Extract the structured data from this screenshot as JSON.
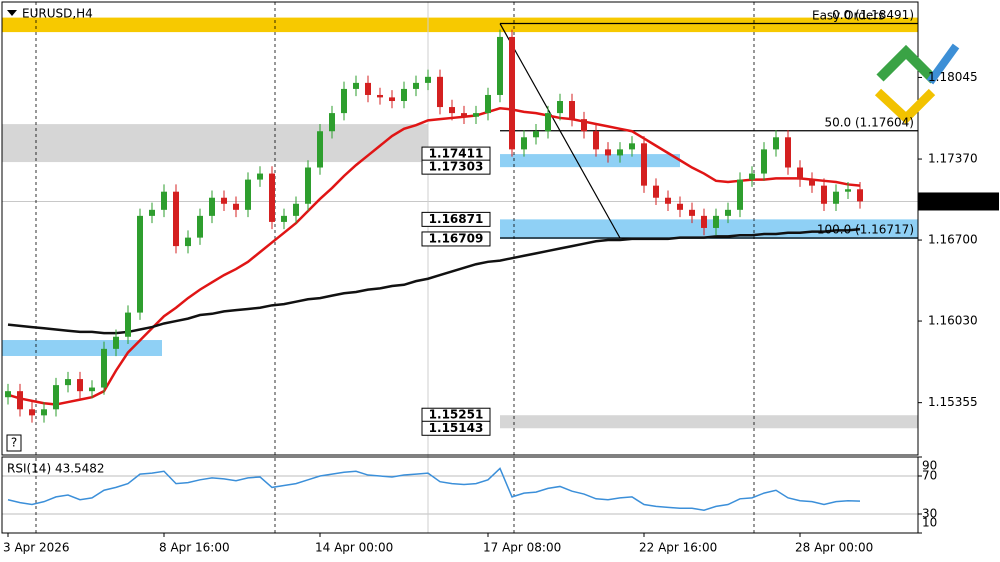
{
  "chart_data": {
    "type": "candlestick",
    "title": "EURUSD,H4",
    "categories": [
      "3 Apr 2026",
      null,
      null,
      null,
      null,
      null,
      null,
      null,
      null,
      null,
      null,
      null,
      null,
      "8 Apr 16:00",
      null,
      null,
      null,
      null,
      null,
      null,
      null,
      null,
      null,
      null,
      null,
      null,
      "14 Apr 00:00",
      null,
      null,
      null,
      null,
      null,
      null,
      null,
      null,
      null,
      null,
      null,
      null,
      null,
      "17 Apr 08:00",
      null,
      null,
      null,
      null,
      null,
      null,
      null,
      null,
      null,
      null,
      null,
      null,
      "22 Apr 16:00",
      null,
      null,
      null,
      null,
      null,
      null,
      null,
      null,
      null,
      null,
      null,
      null,
      "28 Apr 00:00",
      null,
      null,
      null,
      null,
      null
    ],
    "open": [
      1.154,
      1.1545,
      1.153,
      1.1525,
      1.153,
      1.155,
      1.1555,
      1.1545,
      1.1548,
      1.158,
      1.159,
      1.161,
      1.169,
      1.1695,
      1.171,
      1.1665,
      1.1672,
      1.169,
      1.1705,
      1.17,
      1.1695,
      1.172,
      1.1725,
      1.1685,
      1.169,
      1.17,
      1.173,
      1.176,
      1.1775,
      1.1795,
      1.18,
      1.179,
      1.1788,
      1.1785,
      1.1795,
      1.18,
      1.1805,
      1.178,
      1.1775,
      1.1772,
      1.1775,
      1.179,
      1.1838,
      1.1745,
      1.1755,
      1.176,
      1.1775,
      1.1785,
      1.177,
      1.176,
      1.1745,
      1.174,
      1.1745,
      1.175,
      1.1715,
      1.1705,
      1.17,
      1.1695,
      1.169,
      1.168,
      1.169,
      1.1695,
      1.172,
      1.1725,
      1.1745,
      1.1755,
      1.173,
      1.172,
      1.1715,
      1.17,
      1.171,
      1.1712
    ],
    "high": [
      1.1551,
      1.1551,
      1.1536,
      1.1536,
      1.1556,
      1.1561,
      1.1561,
      1.1554,
      1.1586,
      1.1596,
      1.1616,
      1.1696,
      1.1701,
      1.1716,
      1.1716,
      1.1678,
      1.1696,
      1.1711,
      1.1711,
      1.1706,
      1.1726,
      1.1731,
      1.1731,
      1.1696,
      1.1706,
      1.1736,
      1.1766,
      1.1781,
      1.1801,
      1.1806,
      1.1806,
      1.1796,
      1.1794,
      1.1801,
      1.1806,
      1.1811,
      1.1811,
      1.1786,
      1.1781,
      1.1781,
      1.1796,
      1.1844,
      1.1844,
      1.1761,
      1.1766,
      1.1781,
      1.1791,
      1.1791,
      1.1776,
      1.1766,
      1.1751,
      1.1751,
      1.1756,
      1.1756,
      1.1721,
      1.1711,
      1.1706,
      1.1701,
      1.1696,
      1.1696,
      1.1701,
      1.1726,
      1.1731,
      1.1751,
      1.1761,
      1.1761,
      1.1736,
      1.1726,
      1.1721,
      1.1716,
      1.1718,
      1.1718
    ],
    "low": [
      1.1534,
      1.1524,
      1.1519,
      1.1519,
      1.1524,
      1.1544,
      1.1539,
      1.1539,
      1.1542,
      1.1574,
      1.1584,
      1.1604,
      1.1684,
      1.1689,
      1.1659,
      1.1659,
      1.1666,
      1.1684,
      1.1694,
      1.1689,
      1.1689,
      1.1714,
      1.1679,
      1.1679,
      1.1684,
      1.1694,
      1.1724,
      1.1754,
      1.1769,
      1.1789,
      1.1784,
      1.1782,
      1.1779,
      1.1779,
      1.1789,
      1.1794,
      1.1774,
      1.1769,
      1.1766,
      1.1766,
      1.1769,
      1.1784,
      1.1739,
      1.1739,
      1.1749,
      1.1754,
      1.1769,
      1.1764,
      1.1754,
      1.1739,
      1.1734,
      1.1734,
      1.1739,
      1.1709,
      1.1699,
      1.1694,
      1.1689,
      1.1684,
      1.1674,
      1.1674,
      1.1684,
      1.1689,
      1.1714,
      1.1719,
      1.1739,
      1.1724,
      1.1714,
      1.1709,
      1.1694,
      1.1694,
      1.1704,
      1.1696
    ],
    "close": [
      1.1545,
      1.153,
      1.1525,
      1.153,
      1.155,
      1.1555,
      1.1545,
      1.1548,
      1.158,
      1.159,
      1.161,
      1.169,
      1.1695,
      1.171,
      1.1665,
      1.1672,
      1.169,
      1.1705,
      1.17,
      1.1695,
      1.172,
      1.1725,
      1.1685,
      1.169,
      1.17,
      1.173,
      1.176,
      1.1775,
      1.1795,
      1.18,
      1.179,
      1.1788,
      1.1785,
      1.1795,
      1.18,
      1.1805,
      1.178,
      1.1775,
      1.1772,
      1.1775,
      1.179,
      1.1838,
      1.1745,
      1.1755,
      1.176,
      1.1775,
      1.1785,
      1.177,
      1.176,
      1.1745,
      1.174,
      1.1745,
      1.175,
      1.1715,
      1.1705,
      1.17,
      1.1695,
      1.169,
      1.168,
      1.169,
      1.1695,
      1.172,
      1.1725,
      1.1745,
      1.1755,
      1.173,
      1.172,
      1.1715,
      1.17,
      1.171,
      1.1712,
      1.1702
    ],
    "up_color": "#2e9e2e",
    "down_color": "#d42020",
    "ylim": [
      1.14922,
      1.18669
    ],
    "yticks": [
      1.18045,
      {
        "value": 1.1737,
        "label": "1.17370"
      },
      {
        "value": 1.167,
        "label": "1.16700"
      },
      {
        "value": 1.1603,
        "label": "1.16030"
      },
      1.15355
    ],
    "moving_averages": [
      {
        "color": "#e01515",
        "values": [
          1.1542,
          1.1539,
          1.1537,
          1.1535,
          1.1534,
          1.1536,
          1.1538,
          1.154,
          1.1545,
          1.1562,
          1.1577,
          1.1587,
          1.1597,
          1.1607,
          1.1614,
          1.1622,
          1.1629,
          1.1635,
          1.1641,
          1.1646,
          1.1652,
          1.166,
          1.1668,
          1.1676,
          1.1684,
          1.1694,
          1.1704,
          1.1713,
          1.1723,
          1.1732,
          1.174,
          1.1748,
          1.1756,
          1.1762,
          1.1765,
          1.1769,
          1.177,
          1.1771,
          1.1772,
          1.1773,
          1.1776,
          1.1779,
          1.1778,
          1.1776,
          1.1775,
          1.1773,
          1.1771,
          1.177,
          1.1768,
          1.1766,
          1.1764,
          1.1762,
          1.176,
          1.1754,
          1.1748,
          1.1742,
          1.1736,
          1.173,
          1.1725,
          1.1719,
          1.1718,
          1.1719,
          1.172,
          1.172,
          1.1721,
          1.1721,
          1.1721,
          1.172,
          1.1719,
          1.1718,
          1.1716,
          1.1715
        ]
      },
      {
        "color": "#111111",
        "values": [
          1.16,
          1.1599,
          1.1598,
          1.1597,
          1.1596,
          1.1595,
          1.1594,
          1.1594,
          1.1593,
          1.1593,
          1.1594,
          1.1596,
          1.1598,
          1.1601,
          1.1603,
          1.1605,
          1.1608,
          1.1609,
          1.1611,
          1.1612,
          1.1613,
          1.1614,
          1.1616,
          1.1617,
          1.1619,
          1.1621,
          1.1622,
          1.1624,
          1.1626,
          1.1627,
          1.1629,
          1.163,
          1.1632,
          1.1633,
          1.1636,
          1.1638,
          1.1641,
          1.1644,
          1.1647,
          1.165,
          1.1652,
          1.1653,
          1.1655,
          1.1657,
          1.1659,
          1.1661,
          1.1663,
          1.1665,
          1.1667,
          1.1669,
          1.167,
          1.167,
          1.1671,
          1.1671,
          1.1671,
          1.1671,
          1.1672,
          1.1672,
          1.1672,
          1.1673,
          1.1673,
          1.1674,
          1.1674,
          1.1675,
          1.1675,
          1.1676,
          1.1676,
          1.1677,
          1.1677,
          1.1678,
          1.1678,
          1.1679
        ]
      }
    ],
    "current_price": 1.17019,
    "shades": [
      {
        "low": 1.1842,
        "high": 1.1854,
        "color": "#f7c900"
      },
      {
        "low": 1.17345,
        "high": 1.17659,
        "color": "#d6d6d6"
      },
      {
        "low": 1.15741,
        "high": 1.15873,
        "color": "#8fd0f5"
      }
    ],
    "price_boxes": [
      {
        "low": 1.17303,
        "high": 1.17411,
        "color": "#8fd0f5"
      },
      {
        "low": 1.16709,
        "high": 1.16871,
        "color": "#8fd0f5"
      },
      {
        "low": 1.15143,
        "high": 1.15251,
        "color": "#d6d6d6"
      }
    ],
    "fibo": {
      "color": "#000000",
      "levels": [
        {
          "value": 1.18491,
          "label": "0.0 (1.18491)"
        },
        {
          "value": 1.17604,
          "label": "50.0 (1.17604)"
        },
        {
          "value": 1.16717,
          "label": "100.0 (1.16717)"
        }
      ]
    },
    "note": "Easy Orders",
    "help": "?",
    "rsi": {
      "title": "RSI(14) 43.5482",
      "color": "#3b8fd9",
      "ylim": [
        10,
        90
      ],
      "yticks": [
        90,
        70,
        30,
        10
      ],
      "levels": [
        70,
        30
      ],
      "values": [
        45,
        42,
        40,
        43,
        48,
        50,
        45,
        47,
        55,
        58,
        62,
        72,
        73,
        75,
        62,
        63,
        66,
        68,
        67,
        65,
        68,
        69,
        58,
        60,
        62,
        66,
        70,
        72,
        74,
        75,
        71,
        70,
        69,
        71,
        72,
        73,
        64,
        62,
        61,
        62,
        66,
        78,
        48,
        52,
        53,
        57,
        59,
        54,
        51,
        46,
        45,
        47,
        48,
        40,
        38,
        37,
        36,
        36,
        34,
        38,
        40,
        46,
        47,
        52,
        55,
        47,
        44,
        43,
        40,
        43,
        44,
        43.5482
      ]
    }
  }
}
